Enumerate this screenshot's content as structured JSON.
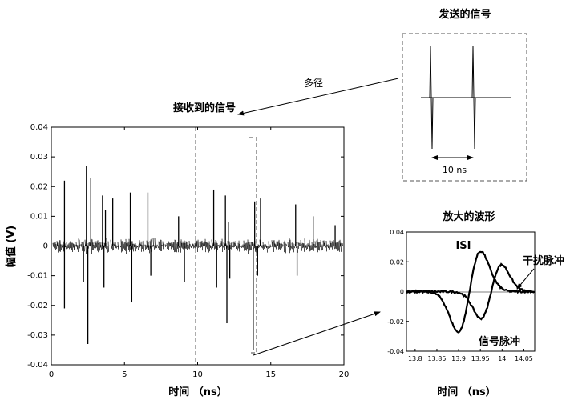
{
  "labels": {
    "sent_title": "发送的信号",
    "multipath": "多径",
    "received_title": "接收到的信号",
    "zoom_title": "放大的波形",
    "pulse_spacing": "10 ns",
    "isi": "ISI",
    "interference_pulse": "干扰脉冲",
    "signal_pulse": "信号脉冲"
  },
  "main_plot": {
    "ylabel": "幅值 (V)",
    "xlabel": "时间 （ns）",
    "y_ticks": [
      "0.04",
      "0.03",
      "0.02",
      "0.01",
      "0",
      "-0.01",
      "-0.02",
      "-0.03",
      "-0.04"
    ],
    "x_ticks": [
      "0",
      "5",
      "10",
      "15",
      "20"
    ]
  },
  "zoom_plot": {
    "xlabel": "时间 （ns）",
    "y_ticks": [
      "0.04",
      "0.02",
      "0",
      "-0.02",
      "-0.04"
    ],
    "x_ticks": [
      "13.8",
      "13.85",
      "13.9",
      "13.95",
      "14",
      "14.05"
    ]
  },
  "chart_data": {
    "type": "line",
    "xlim": [
      0,
      20
    ],
    "ylim": [
      -0.04,
      0.04
    ],
    "marker_line_x": 10,
    "zoom_window_x": [
      13.8,
      14.1
    ],
    "spikes": [
      {
        "x": 0.9,
        "y": 0.022
      },
      {
        "x": 0.9,
        "y": -0.021
      },
      {
        "x": 2.2,
        "y": -0.012
      },
      {
        "x": 2.4,
        "y": 0.027
      },
      {
        "x": 2.5,
        "y": -0.033
      },
      {
        "x": 2.7,
        "y": 0.023
      },
      {
        "x": 3.5,
        "y": 0.017
      },
      {
        "x": 3.6,
        "y": -0.014
      },
      {
        "x": 3.7,
        "y": 0.012
      },
      {
        "x": 4.2,
        "y": 0.016
      },
      {
        "x": 5.4,
        "y": 0.018
      },
      {
        "x": 5.5,
        "y": -0.019
      },
      {
        "x": 6.6,
        "y": 0.018
      },
      {
        "x": 6.8,
        "y": -0.01
      },
      {
        "x": 8.7,
        "y": 0.01
      },
      {
        "x": 9.1,
        "y": -0.012
      },
      {
        "x": 11.1,
        "y": 0.019
      },
      {
        "x": 11.3,
        "y": -0.014
      },
      {
        "x": 11.9,
        "y": 0.017
      },
      {
        "x": 12.0,
        "y": -0.026
      },
      {
        "x": 12.1,
        "y": 0.008
      },
      {
        "x": 12.2,
        "y": -0.011
      },
      {
        "x": 13.8,
        "y": -0.035
      },
      {
        "x": 13.9,
        "y": 0.015
      },
      {
        "x": 14.1,
        "y": -0.01
      },
      {
        "x": 14.3,
        "y": 0.016
      },
      {
        "x": 16.7,
        "y": 0.014
      },
      {
        "x": 16.8,
        "y": -0.01
      },
      {
        "x": 17.9,
        "y": 0.01
      },
      {
        "x": 19.4,
        "y": 0.007
      }
    ]
  }
}
